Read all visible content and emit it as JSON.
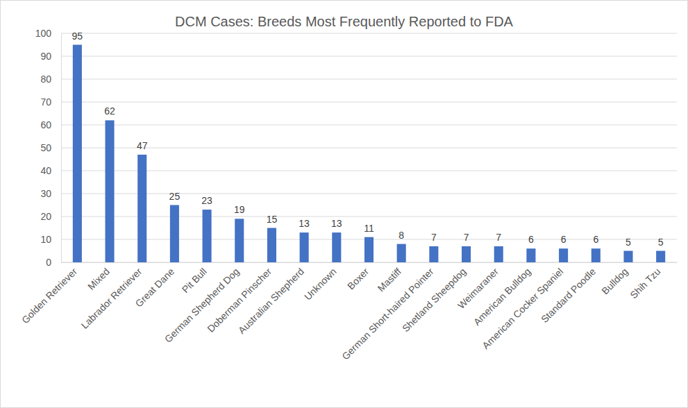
{
  "chart_data": {
    "type": "bar",
    "title": "DCM Cases: Breeds Most Frequently Reported to FDA",
    "categories": [
      "Golden Retriever",
      "Mixed",
      "Labrador Retriever",
      "Great Dane",
      "Pit Bull",
      "German Shepherd Dog",
      "Doberman Pinscher",
      "Australian Shepherd",
      "Unknown",
      "Boxer",
      "Mastiff",
      "German Short-haired Pointer",
      "Shetland Sheepdog",
      "Weimaraner",
      "American Bulldog",
      "American Cocker Spaniel",
      "Standard Poodle",
      "Bulldog",
      "Shih Tzu"
    ],
    "values": [
      95,
      62,
      47,
      25,
      23,
      19,
      15,
      13,
      13,
      11,
      8,
      7,
      7,
      7,
      6,
      6,
      6,
      5,
      5
    ],
    "color": "#4472c4",
    "ylim": [
      0,
      100
    ],
    "yticks": [
      0,
      10,
      20,
      30,
      40,
      50,
      60,
      70,
      80,
      90,
      100
    ],
    "grid": true,
    "data_labels": true
  }
}
